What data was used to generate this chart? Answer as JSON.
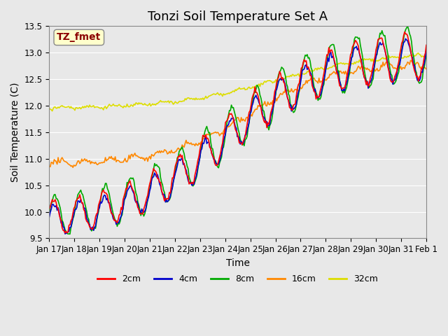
{
  "title": "Tonzi Soil Temperature Set A",
  "xlabel": "Time",
  "ylabel": "Soil Temperature (C)",
  "ylim": [
    9.5,
    13.5
  ],
  "annotation": "TZ_fmet",
  "annotation_color": "#8B0000",
  "annotation_bg": "#FFFFCC",
  "series_colors": {
    "2cm": "#FF0000",
    "4cm": "#0000CC",
    "8cm": "#00AA00",
    "16cm": "#FF8800",
    "32cm": "#DDDD00"
  },
  "series_linewidth": 1.2,
  "bg_color": "#E8E8E8",
  "plot_bg": "#E8E8E8",
  "xtick_labels": [
    "Jan 17",
    "Jan 18",
    "Jan 19",
    "Jan 20",
    "Jan 21",
    "Jan 22",
    "Jan 23",
    "Jan 24",
    "Jan 25",
    "Jan 26",
    "Jan 27",
    "Jan 28",
    "Jan 29",
    "Jan 30",
    "Jan 31",
    "Feb 1"
  ],
  "title_fontsize": 13,
  "axis_fontsize": 10,
  "tick_fontsize": 8.5
}
